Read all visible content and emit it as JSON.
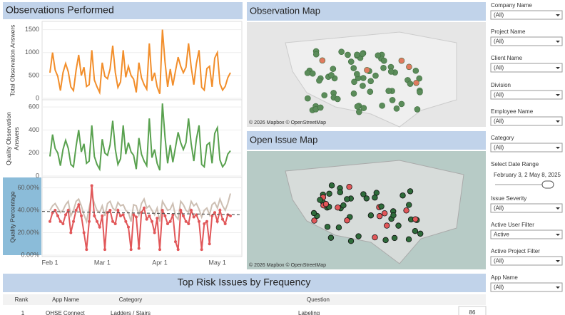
{
  "header": {
    "observations_title": "Observations Performed"
  },
  "chart_data": [
    {
      "type": "line",
      "y_label": [
        "Total Observation Answers"
      ],
      "ylim": [
        0,
        1650
      ],
      "yticks": [
        0,
        500,
        1000,
        1500
      ],
      "grid": true,
      "series": [
        {
          "color": "#f28e2b",
          "values": [
            560,
            1000,
            620,
            480,
            170,
            560,
            760,
            580,
            250,
            170,
            620,
            950,
            500,
            680,
            260,
            300,
            1050,
            400,
            250,
            130,
            780,
            480,
            430,
            640,
            1150,
            560,
            240,
            360,
            1050,
            460,
            700,
            500,
            420,
            130,
            780,
            450,
            300,
            200,
            1200,
            380,
            560,
            250,
            100,
            1500,
            800,
            250,
            640,
            280,
            600,
            900,
            700,
            560,
            680,
            1200,
            680,
            300,
            760,
            1050,
            240,
            180,
            650,
            700,
            250,
            880,
            1000,
            320,
            180,
            260,
            450,
            560
          ]
        }
      ]
    },
    {
      "type": "line",
      "y_label": [
        "Quality Observation",
        "Answers"
      ],
      "ylim": [
        0,
        650
      ],
      "yticks": [
        0,
        200,
        400,
        600
      ],
      "grid": true,
      "series": [
        {
          "color": "#59a14f",
          "values": [
            170,
            360,
            240,
            200,
            90,
            230,
            310,
            240,
            100,
            80,
            260,
            400,
            210,
            280,
            110,
            130,
            440,
            170,
            100,
            60,
            320,
            200,
            180,
            270,
            480,
            230,
            100,
            150,
            440,
            190,
            290,
            210,
            180,
            60,
            330,
            190,
            130,
            90,
            500,
            160,
            230,
            110,
            50,
            630,
            340,
            110,
            270,
            120,
            250,
            380,
            290,
            230,
            290,
            500,
            280,
            130,
            320,
            440,
            100,
            80,
            270,
            290,
            110,
            370,
            420,
            140,
            80,
            110,
            190,
            220
          ]
        }
      ]
    },
    {
      "type": "line",
      "y_label": [
        "Quality Percentage"
      ],
      "ylim": [
        0,
        68
      ],
      "yticks": [
        {
          "value": 0,
          "label": "0.00%"
        },
        {
          "value": 20,
          "label": "20.00%"
        },
        {
          "value": 40,
          "label": "40.00%"
        },
        {
          "value": 60,
          "label": "60.00%"
        }
      ],
      "grid": true,
      "trend": [
        39,
        36
      ],
      "categories": [
        "Feb 1",
        null,
        null,
        null,
        null,
        null,
        null,
        null,
        null,
        null,
        null,
        null,
        null,
        null,
        null,
        null,
        null,
        null,
        null,
        null,
        "Mar 1",
        null,
        null,
        null,
        null,
        null,
        null,
        null,
        null,
        null,
        null,
        null,
        null,
        null,
        null,
        null,
        null,
        null,
        null,
        null,
        null,
        null,
        "Apr 1",
        null,
        null,
        null,
        null,
        null,
        null,
        null,
        null,
        null,
        null,
        null,
        null,
        null,
        null,
        null,
        null,
        null,
        null,
        null,
        null,
        null,
        "May 1",
        null,
        null,
        null,
        null,
        null
      ],
      "series": [
        {
          "color": "#cdbfb3",
          "values": [
            40,
            44,
            46,
            42,
            38,
            40,
            45,
            48,
            35,
            40,
            48,
            50,
            44,
            36,
            30,
            42,
            54,
            46,
            40,
            38,
            44,
            35,
            46,
            48,
            42,
            40,
            47,
            44,
            45,
            40,
            38,
            30,
            45,
            44,
            36,
            46,
            50,
            42,
            44,
            40,
            36,
            42,
            30,
            48,
            44,
            40,
            41,
            46,
            35,
            32,
            48,
            45,
            40,
            38,
            48,
            44,
            46,
            41,
            34,
            40,
            42,
            36,
            45,
            47,
            42,
            50,
            44,
            40,
            46,
            55
          ]
        },
        {
          "color": "#e15759",
          "markers": true,
          "values": [
            30,
            38,
            40,
            35,
            30,
            28,
            36,
            40,
            20,
            30,
            40,
            45,
            35,
            20,
            5,
            30,
            62,
            35,
            30,
            25,
            35,
            5,
            38,
            40,
            30,
            28,
            40,
            35,
            36,
            30,
            25,
            5,
            36,
            34,
            6,
            38,
            42,
            32,
            35,
            30,
            20,
            33,
            5,
            40,
            35,
            28,
            30,
            36,
            12,
            5,
            40,
            35,
            30,
            28,
            40,
            34,
            36,
            30,
            5,
            28,
            30,
            10,
            35,
            38,
            30,
            40,
            32,
            28,
            36,
            35
          ]
        }
      ]
    }
  ],
  "observation_map": {
    "title": "Observation Map",
    "attribution": "© 2026 Mapbox © OpenStreetMap"
  },
  "issue_map": {
    "title": "Open Issue Map",
    "attribution": "© 2026 Mapbox © OpenStreetMap"
  },
  "table": {
    "title": "Top Risk Issues by Frequency",
    "headers": [
      "Rank",
      "App Name",
      "Category",
      "Question"
    ],
    "rows": [
      [
        1,
        "OHSE Connect",
        "Ladders / Stairs",
        "Labeling",
        86
      ]
    ]
  },
  "filters": [
    {
      "label": "Company Name",
      "value": "(All)"
    },
    {
      "label": "Project Name",
      "value": "(All)"
    },
    {
      "label": "Client Name",
      "value": "(All)"
    },
    {
      "label": "Division",
      "value": "(All)"
    },
    {
      "label": "Employee Name",
      "value": "(All)"
    },
    {
      "label": "Category",
      "value": "(All)"
    },
    {
      "label": "Issue Severity",
      "value": "(All)"
    },
    {
      "label": "Active User Filter",
      "value": "Active"
    },
    {
      "label": "Active Project Filter",
      "value": "(All)"
    },
    {
      "label": "App Name",
      "value": "(All)"
    }
  ],
  "date_filter": {
    "label": "Select Date Range",
    "start": "February 3, 2",
    "end": "May 8, 2025"
  }
}
